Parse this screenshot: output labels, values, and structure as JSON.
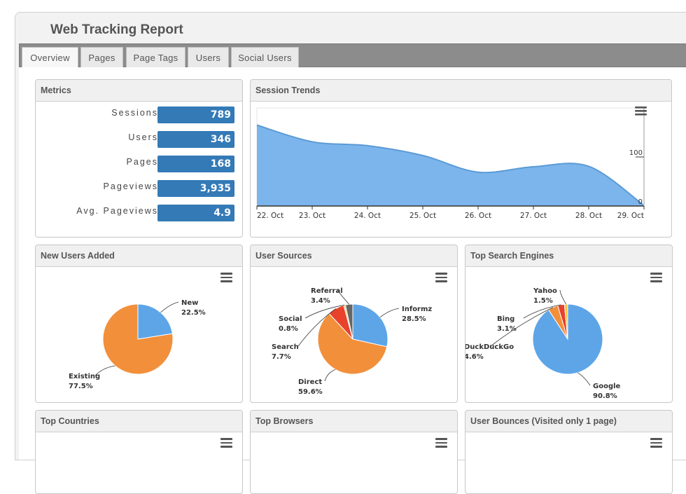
{
  "report": {
    "title": "Web Tracking Report"
  },
  "tabs": [
    "Overview",
    "Pages",
    "Page Tags",
    "Users",
    "Social Users"
  ],
  "active_tab": "Overview",
  "metrics": {
    "title": "Metrics",
    "items": [
      {
        "label": "Sessions",
        "value": "789"
      },
      {
        "label": "Users",
        "value": "346"
      },
      {
        "label": "Pages",
        "value": "168"
      },
      {
        "label": "Pageviews",
        "value": "3,935"
      },
      {
        "label": "Avg. Pageviews",
        "value": "4.9"
      }
    ]
  },
  "panels": {
    "session_trends": "Session Trends",
    "new_users": "New Users Added",
    "user_sources": "User Sources",
    "search_engines": "Top Search Engines",
    "countries": "Top Countries",
    "browsers": "Top Browsers",
    "bounces": "User Bounces (Visited only 1 page)"
  },
  "colors": {
    "accent": "#337ab7",
    "area": "#7cb5ec",
    "line": "#5b9bd5",
    "orange": "#f28f3b",
    "red": "#e8412c",
    "gray": "#555555"
  },
  "chart_data": [
    {
      "type": "area",
      "title": "Session Trends",
      "x": [
        "22. Oct",
        "23. Oct",
        "24. Oct",
        "25. Oct",
        "26. Oct",
        "27. Oct",
        "28. Oct",
        "29. Oct"
      ],
      "values": [
        165,
        131,
        123,
        103,
        69,
        80,
        81,
        1
      ],
      "yticks": [
        0,
        100
      ],
      "ylim": [
        0,
        200
      ]
    },
    {
      "type": "pie",
      "title": "New Users Added",
      "slices": [
        {
          "name": "New",
          "label": "22.5%",
          "value": 22.5,
          "color": "#5ea5e8"
        },
        {
          "name": "Existing",
          "label": "77.5%",
          "value": 77.5,
          "color": "#f28f3b"
        }
      ]
    },
    {
      "type": "pie",
      "title": "User Sources",
      "slices": [
        {
          "name": "Informz",
          "label": "28.5%",
          "value": 28.5,
          "color": "#5ea5e8"
        },
        {
          "name": "Direct",
          "label": "59.6%",
          "value": 59.6,
          "color": "#f28f3b"
        },
        {
          "name": "Search",
          "label": "7.7%",
          "value": 7.7,
          "color": "#e8412c"
        },
        {
          "name": "Social",
          "label": "0.8%",
          "value": 0.8,
          "color": "#f4c542"
        },
        {
          "name": "Referral",
          "label": "3.4%",
          "value": 3.4,
          "color": "#666666"
        }
      ]
    },
    {
      "type": "pie",
      "title": "Top Search Engines",
      "slices": [
        {
          "name": "Google",
          "label": "90.8%",
          "value": 90.8,
          "color": "#5ea5e8"
        },
        {
          "name": "DuckDuckGo",
          "label": "4.6%",
          "value": 4.6,
          "color": "#f28f3b"
        },
        {
          "name": "Bing",
          "label": "3.1%",
          "value": 3.1,
          "color": "#e8412c"
        },
        {
          "name": "Yahoo",
          "label": "1.5%",
          "value": 1.5,
          "color": "#f4c542"
        }
      ]
    }
  ]
}
